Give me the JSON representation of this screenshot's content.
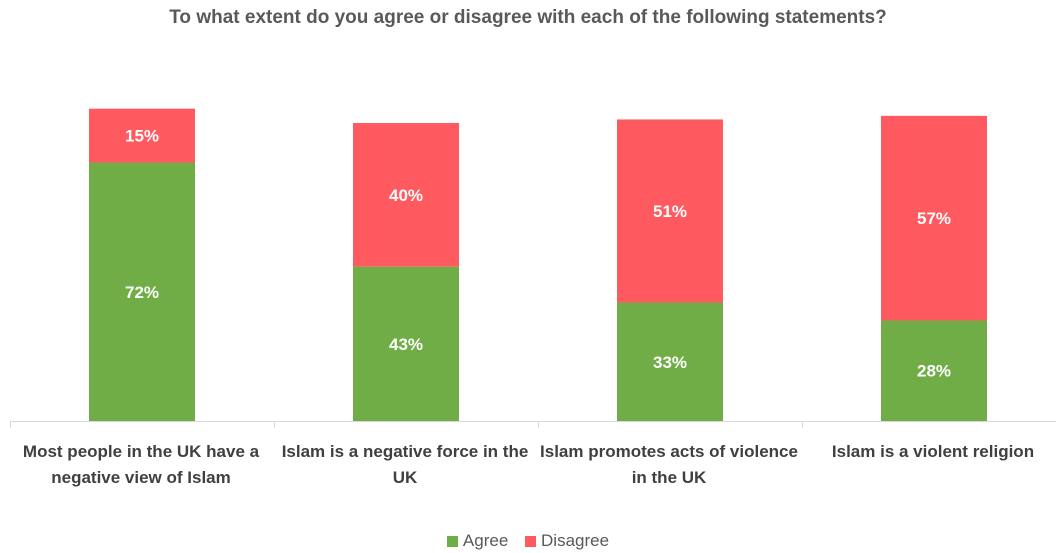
{
  "chart_data": {
    "type": "bar",
    "stacked": true,
    "title": "To what extent do you agree or disagree with each of the following statements?",
    "categories": [
      "Most people in the UK have a negative view of Islam",
      "Islam is a negative force in the UK",
      "Islam promotes acts of violence in the UK",
      "Islam is a violent religion"
    ],
    "series": [
      {
        "name": "Agree",
        "color": "#70AD47",
        "values": [
          72,
          43,
          33,
          28
        ],
        "labels": [
          "72%",
          "43%",
          "33%",
          "28%"
        ]
      },
      {
        "name": "Disagree",
        "color": "#FF5A5F",
        "values": [
          15,
          40,
          51,
          57
        ],
        "labels": [
          "15%",
          "40%",
          "51%",
          "57%"
        ]
      }
    ],
    "ylim": [
      0,
      100
    ],
    "grid": false,
    "legend_position": "bottom"
  }
}
